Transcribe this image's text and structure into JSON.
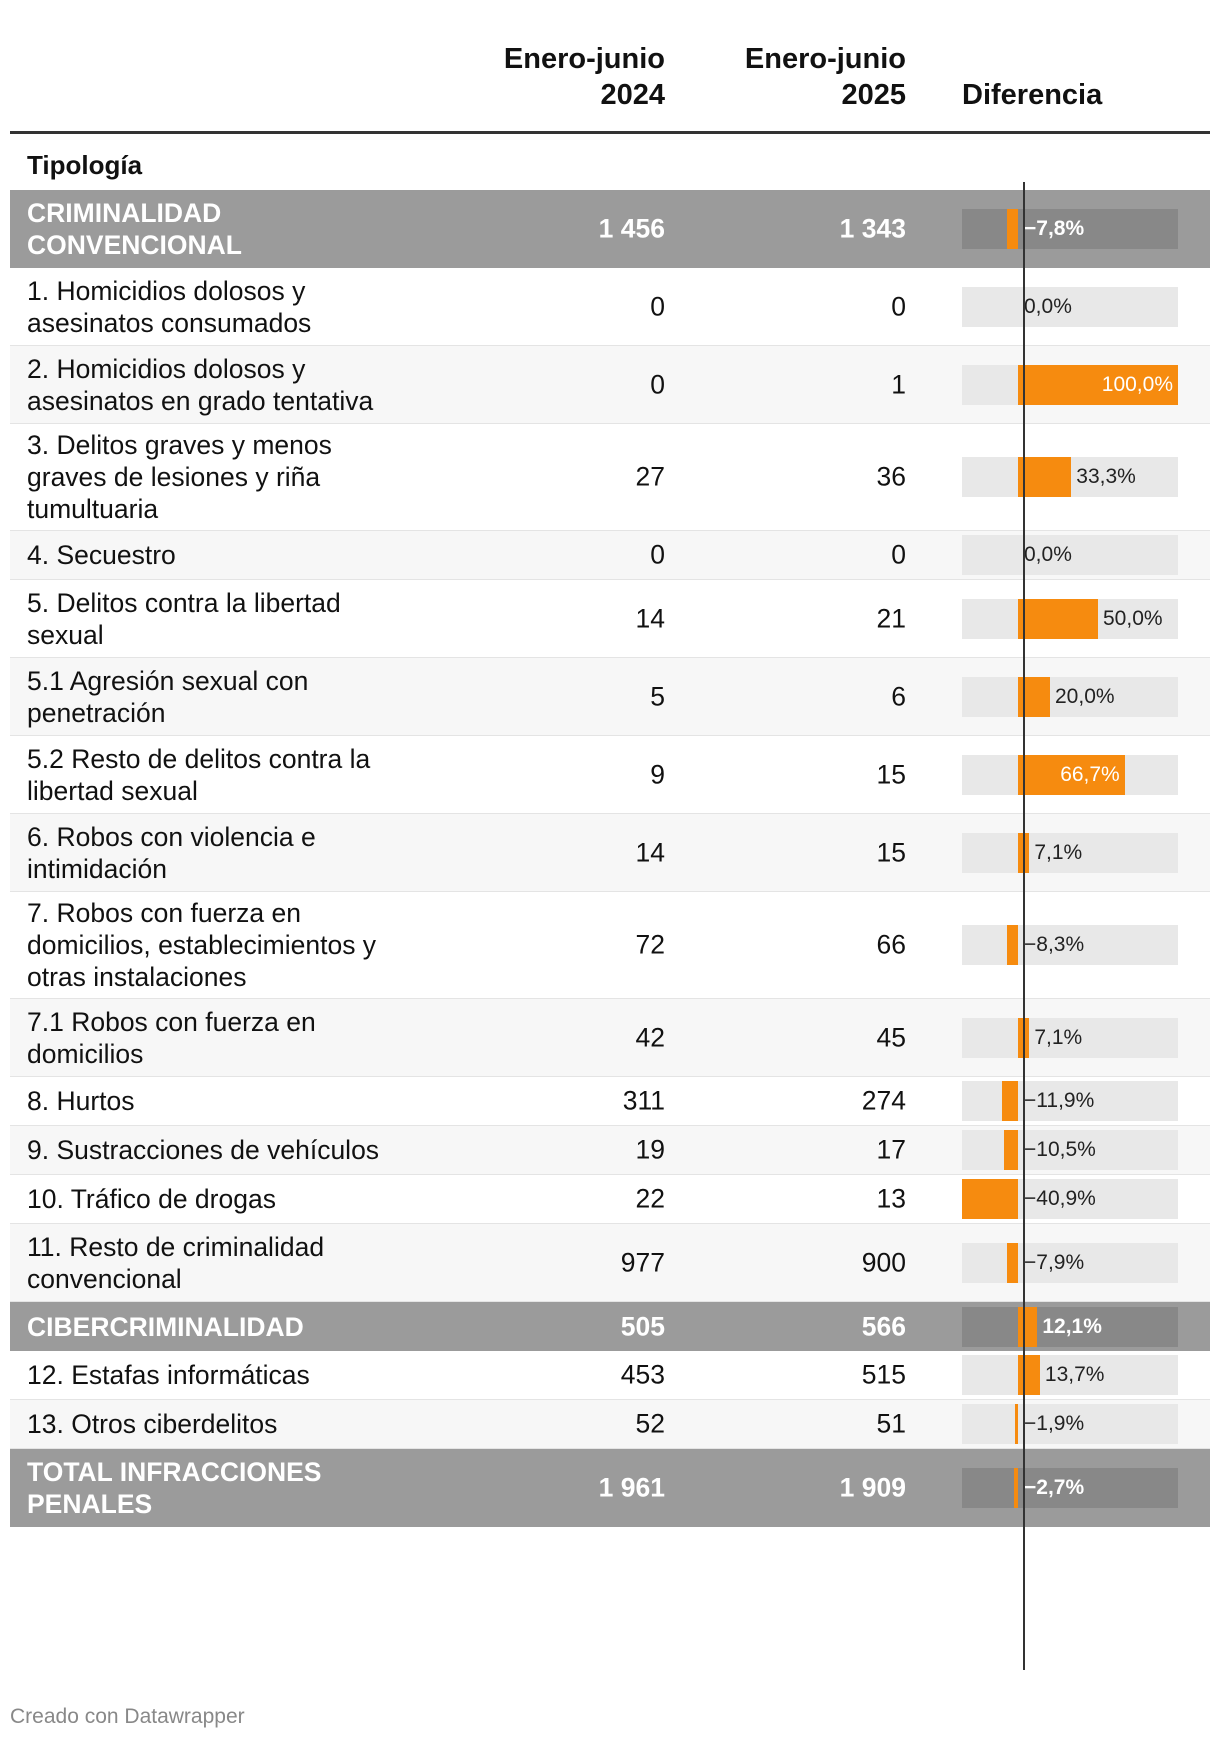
{
  "header": {
    "col1": "Enero-junio\n2024",
    "col2": "Enero-junio\n2025",
    "col3": "Diferencia",
    "tipologia": "Tipología"
  },
  "chart_data": {
    "type": "table",
    "columns": [
      "Tipología",
      "Enero-junio 2024",
      "Enero-junio 2025",
      "Diferencia"
    ],
    "diff_range": [
      -40.9,
      100.0
    ],
    "rows": [
      {
        "label": "CRIMINALIDAD CONVENCIONAL",
        "v2024": "1 456",
        "v2025": "1 343",
        "diff": -7.8,
        "diff_label": "−7,8%",
        "group": true
      },
      {
        "label": "1. Homicidios dolosos y asesinatos consumados",
        "v2024": "0",
        "v2025": "0",
        "diff": 0.0,
        "diff_label": "0,0%"
      },
      {
        "label": "2. Homicidios dolosos y asesinatos en grado tentativa",
        "v2024": "0",
        "v2025": "1",
        "diff": 100.0,
        "diff_label": "100,0%"
      },
      {
        "label": "3. Delitos graves y menos graves de lesiones y riña tumultuaria",
        "v2024": "27",
        "v2025": "36",
        "diff": 33.3,
        "diff_label": "33,3%"
      },
      {
        "label": "4. Secuestro",
        "v2024": "0",
        "v2025": "0",
        "diff": 0.0,
        "diff_label": "0,0%"
      },
      {
        "label": "5. Delitos contra la libertad sexual",
        "v2024": "14",
        "v2025": "21",
        "diff": 50.0,
        "diff_label": "50,0%"
      },
      {
        "label": "5.1 Agresión sexual con penetración",
        "v2024": "5",
        "v2025": "6",
        "diff": 20.0,
        "diff_label": "20,0%"
      },
      {
        "label": "5.2 Resto de delitos contra la libertad sexual",
        "v2024": "9",
        "v2025": "15",
        "diff": 66.7,
        "diff_label": "66,7%"
      },
      {
        "label": "6. Robos con violencia e intimidación",
        "v2024": "14",
        "v2025": "15",
        "diff": 7.1,
        "diff_label": "7,1%"
      },
      {
        "label": "7. Robos con fuerza en domicilios, establecimientos y otras instalaciones",
        "v2024": "72",
        "v2025": "66",
        "diff": -8.3,
        "diff_label": "−8,3%"
      },
      {
        "label": "7.1 Robos con fuerza en domicilios",
        "v2024": "42",
        "v2025": "45",
        "diff": 7.1,
        "diff_label": "7,1%"
      },
      {
        "label": "8. Hurtos",
        "v2024": "311",
        "v2025": "274",
        "diff": -11.9,
        "diff_label": "−11,9%"
      },
      {
        "label": "9. Sustracciones de vehículos",
        "v2024": "19",
        "v2025": "17",
        "diff": -10.5,
        "diff_label": "−10,5%"
      },
      {
        "label": "10. Tráfico de drogas",
        "v2024": "22",
        "v2025": "13",
        "diff": -40.9,
        "diff_label": "−40,9%"
      },
      {
        "label": "11. Resto de criminalidad convencional",
        "v2024": "977",
        "v2025": "900",
        "diff": -7.9,
        "diff_label": "−7,9%"
      },
      {
        "label": "CIBERCRIMINALIDAD",
        "v2024": "505",
        "v2025": "566",
        "diff": 12.1,
        "diff_label": "12,1%",
        "group": true
      },
      {
        "label": "12. Estafas informáticas",
        "v2024": "453",
        "v2025": "515",
        "diff": 13.7,
        "diff_label": "13,7%"
      },
      {
        "label": "13. Otros ciberdelitos",
        "v2024": "52",
        "v2025": "51",
        "diff": -1.9,
        "diff_label": "−1,9%"
      },
      {
        "label": "TOTAL INFRACCIONES PENALES",
        "v2024": "1 961",
        "v2025": "1 909",
        "diff": -2.7,
        "diff_label": "−2,7%",
        "group": true
      }
    ]
  },
  "colors": {
    "bar": "#f68b0f",
    "group_bg": "#9b9b9b"
  },
  "footer": "Creado con Datawrapper"
}
